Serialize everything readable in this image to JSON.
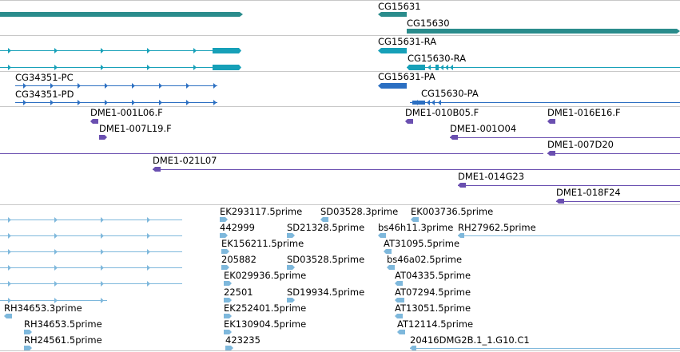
{
  "browser": {
    "colors": {
      "gene": "#2a8c8c",
      "transcript": "#16a0b8",
      "cds_transcript": "#2b6fc2",
      "clone": "#6a4fb0",
      "est": "#7eb8dc",
      "separator": "#c8c8c8"
    },
    "genes_track": {
      "features": [
        {
          "label": "",
          "start": 0,
          "end": 304,
          "strand": "+"
        },
        {
          "label": "CG15631",
          "start": 473,
          "end": 509,
          "strand": "-"
        },
        {
          "label": "CG15630",
          "start": 509,
          "end": 851,
          "strand": "+"
        }
      ]
    },
    "transcripts_track": {
      "features": [
        {
          "label": "",
          "row": 0,
          "start": 0,
          "end": 302,
          "strand": "+"
        },
        {
          "label": "",
          "row": 1,
          "start": 0,
          "end": 302,
          "strand": "+"
        },
        {
          "label": "CG15631-RA",
          "row": 0,
          "start": 473,
          "end": 509,
          "strand": "-"
        },
        {
          "label": "CG15630-RA",
          "row": 1,
          "start": 509,
          "end": 851,
          "strand": "-"
        }
      ]
    },
    "cds_track": {
      "features": [
        {
          "label": "CG34351-PC",
          "row": 0,
          "start": 19,
          "end": 272,
          "strand": "+"
        },
        {
          "label": "CG34351-PD",
          "row": 1,
          "start": 19,
          "end": 272,
          "strand": "+"
        },
        {
          "label": "CG15631-PA",
          "row": 0,
          "start": 473,
          "end": 509,
          "strand": "-"
        },
        {
          "label": "CG15630-PA",
          "row": 1,
          "start": 513,
          "end": 851,
          "strand": "-"
        }
      ]
    },
    "clones_track": {
      "features": [
        {
          "label": "DME1-001L06.F",
          "row": 0,
          "start": 113,
          "end": 123,
          "strand": "-"
        },
        {
          "label": "DME1-010B05.F",
          "row": 0,
          "start": 507,
          "end": 517,
          "strand": "-"
        },
        {
          "label": "DME1-016E16.F",
          "row": 0,
          "start": 685,
          "end": 695,
          "strand": "-"
        },
        {
          "label": "DME1-007L19.F",
          "row": 1,
          "start": 124,
          "end": 134,
          "strand": "+"
        },
        {
          "label": "DME1-001O04",
          "row": 1,
          "start": 563,
          "end": 851,
          "strand": "-"
        },
        {
          "label": "",
          "row": 2,
          "start": 0,
          "end": 680,
          "strand": "+"
        },
        {
          "label": "DME1-007D20",
          "row": 2,
          "start": 685,
          "end": 851,
          "strand": "-"
        },
        {
          "label": "DME1-021L07",
          "row": 3,
          "start": 191,
          "end": 851,
          "strand": "-"
        },
        {
          "label": "DME1-014G23",
          "row": 4,
          "start": 573,
          "end": 851,
          "strand": "-"
        },
        {
          "label": "DME1-018F24",
          "row": 5,
          "start": 696,
          "end": 851,
          "strand": "-"
        }
      ]
    },
    "ests_track": {
      "features": [
        {
          "label": "",
          "row": 0,
          "start": 0,
          "end": 228,
          "strand": "+"
        },
        {
          "label": "",
          "row": 1,
          "start": 0,
          "end": 228,
          "strand": "+"
        },
        {
          "label": "",
          "row": 2,
          "start": 0,
          "end": 228,
          "strand": "+"
        },
        {
          "label": "",
          "row": 3,
          "start": 0,
          "end": 228,
          "strand": "+"
        },
        {
          "label": "",
          "row": 4,
          "start": 0,
          "end": 228,
          "strand": "+"
        },
        {
          "label": "",
          "row": 5,
          "start": 0,
          "end": 134,
          "strand": "+"
        },
        {
          "label": "RH34653.3prime",
          "row": 6,
          "start": 5,
          "end": 15,
          "strand": "-"
        },
        {
          "label": "RH34653.5prime",
          "row": 7,
          "start": 30,
          "end": 40,
          "strand": "+"
        },
        {
          "label": "RH24561.5prime",
          "row": 8,
          "start": 30,
          "end": 40,
          "strand": "+"
        },
        {
          "label": "EK293117.5prime",
          "row": 0,
          "start": 275,
          "end": 285,
          "strand": "+"
        },
        {
          "label": "442999",
          "row": 1,
          "start": 275,
          "end": 285,
          "strand": "+"
        },
        {
          "label": "EK156211.5prime",
          "row": 2,
          "start": 277,
          "end": 287,
          "strand": "+"
        },
        {
          "label": "205882",
          "row": 3,
          "start": 277,
          "end": 287,
          "strand": "+"
        },
        {
          "label": "EK029936.5prime",
          "row": 4,
          "start": 280,
          "end": 290,
          "strand": "+"
        },
        {
          "label": "22501",
          "row": 5,
          "start": 280,
          "end": 290,
          "strand": "+"
        },
        {
          "label": "EK252401.5prime",
          "row": 6,
          "start": 280,
          "end": 290,
          "strand": "+"
        },
        {
          "label": "EK130904.5prime",
          "row": 7,
          "start": 280,
          "end": 290,
          "strand": "+"
        },
        {
          "label": "423235",
          "row": 8,
          "start": 282,
          "end": 292,
          "strand": "+"
        },
        {
          "label": "SD03528.3prime",
          "row": 0,
          "start": 401,
          "end": 411,
          "strand": "-"
        },
        {
          "label": "SD21328.5prime",
          "row": 1,
          "start": 359,
          "end": 369,
          "strand": "+"
        },
        {
          "label": "SD03528.5prime",
          "row": 3,
          "start": 359,
          "end": 369,
          "strand": "+"
        },
        {
          "label": "SD19934.5prime",
          "row": 5,
          "start": 359,
          "end": 369,
          "strand": "+"
        },
        {
          "label": "EK003736.5prime",
          "row": 0,
          "start": 514,
          "end": 524,
          "strand": "-"
        },
        {
          "label": "bs46h11.3prime",
          "row": 1,
          "start": 473,
          "end": 483,
          "strand": "-"
        },
        {
          "label": "RH27962.5prime",
          "row": 1,
          "start": 573,
          "end": 851,
          "strand": "-"
        },
        {
          "label": "AT31095.5prime",
          "row": 2,
          "start": 480,
          "end": 490,
          "strand": "-"
        },
        {
          "label": "bs46a02.5prime",
          "row": 3,
          "start": 484,
          "end": 494,
          "strand": "-"
        },
        {
          "label": "AT04335.5prime",
          "row": 4,
          "start": 494,
          "end": 504,
          "strand": "-"
        },
        {
          "label": "AT07294.5prime",
          "row": 5,
          "start": 494,
          "end": 506,
          "strand": "-"
        },
        {
          "label": "AT13051.5prime",
          "row": 6,
          "start": 494,
          "end": 504,
          "strand": "-"
        },
        {
          "label": "AT12114.5prime",
          "row": 7,
          "start": 497,
          "end": 507,
          "strand": "-"
        },
        {
          "label": "20416DMG2B.1_1.G10.C1",
          "row": 8,
          "start": 513,
          "end": 851,
          "strand": "-"
        }
      ]
    }
  }
}
